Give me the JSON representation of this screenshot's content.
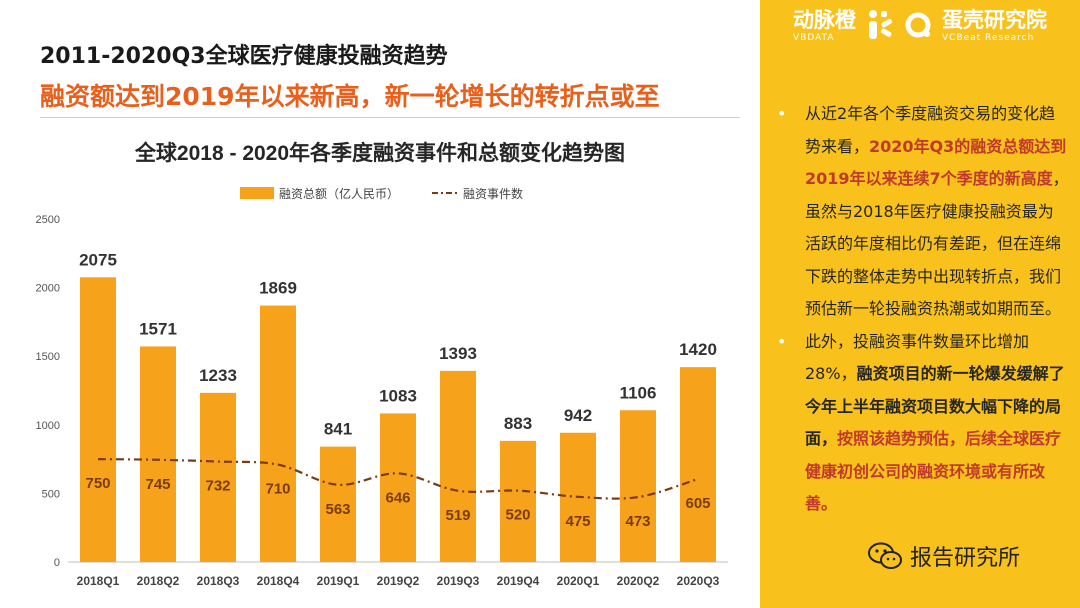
{
  "header": {
    "title": "2011-2020Q3全球医疗健康投融资趋势",
    "subtitle": "融资额达到2019年以来新高，新一轮增长的转折点或至"
  },
  "chart_data": {
    "type": "bar",
    "title": "全球2018 - 2020年各季度融资事件和总额变化趋势图",
    "categories": [
      "2018Q1",
      "2018Q2",
      "2018Q3",
      "2018Q4",
      "2019Q1",
      "2019Q2",
      "2019Q3",
      "2019Q4",
      "2020Q1",
      "2020Q2",
      "2020Q3"
    ],
    "series": [
      {
        "name": "融资总额（亿人民币）",
        "kind": "bar",
        "values": [
          2075,
          1571,
          1233,
          1869,
          841,
          1083,
          1393,
          883,
          942,
          1106,
          1420
        ]
      },
      {
        "name": "融资事件数",
        "kind": "line",
        "values": [
          750,
          745,
          732,
          710,
          563,
          646,
          519,
          520,
          475,
          473,
          605
        ]
      }
    ],
    "y_ticks": [
      "0",
      "500",
      "1000",
      "1500",
      "2000",
      "2500"
    ],
    "ylim": [
      0,
      2500
    ],
    "legend_position": "top",
    "grid": false,
    "colors": {
      "bar": "#f7a21b",
      "line": "#7a3d12",
      "bar_label": "#333333",
      "line_label": "#7a3d12"
    }
  },
  "side_panel": {
    "brand_left": {
      "cn": "动脉橙",
      "en": "VBDATA"
    },
    "brand_right": {
      "cn": "蛋壳研究院",
      "en": "VCBeat Research"
    },
    "bullets": [
      {
        "marker": "•",
        "parts": [
          {
            "text": "从近2年各个季度融资交易的变化趋势来看，",
            "style": "normal"
          },
          {
            "text": "2020年Q3的融资总额达到2019年以来连续7个季度的新高度",
            "style": "highlight"
          },
          {
            "text": "，虽然与2018年医疗健康投融资最为活跃的年度相比仍有差距，但在连绵下跌的整体走势中出现转折点，我们预估新一轮投融资热潮或如期而至。",
            "style": "normal"
          }
        ]
      },
      {
        "marker": "•",
        "parts": [
          {
            "text": "此外，投融资事件数量环比增加28%，",
            "style": "normal"
          },
          {
            "text": "融资项目的新一轮爆发缓解了今年上半年融资项目数大幅下降的局面，",
            "style": "strong"
          },
          {
            "text": "按照该趋势预估，后续全球医疗健康初创公司的融资环境或有所改善。",
            "style": "highlight"
          }
        ]
      }
    ],
    "bg_color": "#f9c11c"
  },
  "watermark": {
    "text": "报告研究所",
    "icon": "wechat-icon"
  }
}
